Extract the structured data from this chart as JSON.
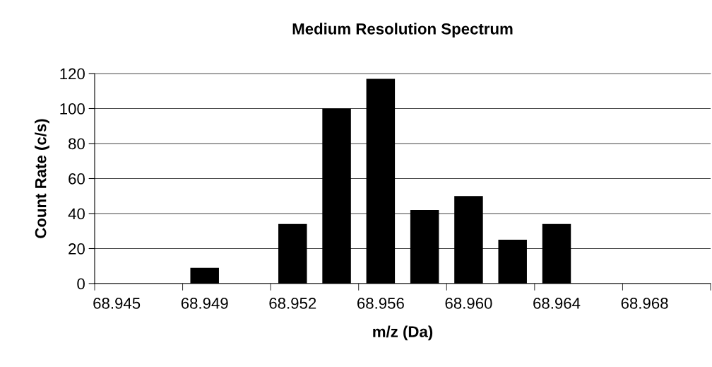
{
  "chart_data": {
    "type": "bar",
    "title": "Medium Resolution Spectrum",
    "xlabel": "m/z (Da)",
    "ylabel": "Count Rate (c/s)",
    "categories": [
      "68.945",
      null,
      "68.949",
      null,
      "68.952",
      null,
      "68.956",
      null,
      "68.960",
      null,
      "68.964",
      null,
      "68.968",
      null
    ],
    "values": [
      0,
      0,
      9,
      0,
      34,
      100,
      117,
      42,
      50,
      25,
      34,
      0,
      0,
      0
    ],
    "color": "#000000",
    "ylim": [
      0,
      120
    ],
    "yticks": [
      0,
      20,
      40,
      60,
      80,
      100,
      120
    ],
    "grid": "y"
  }
}
